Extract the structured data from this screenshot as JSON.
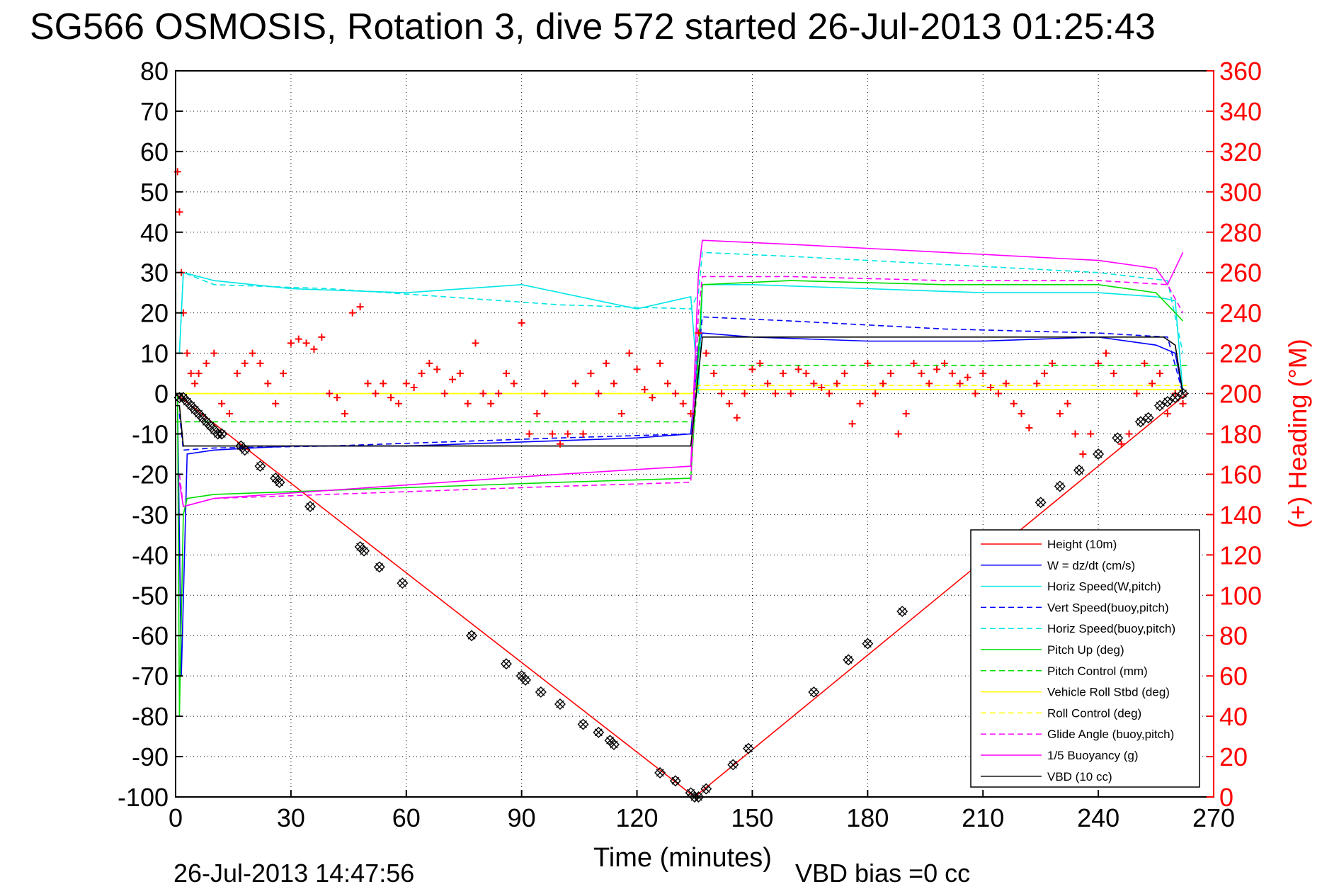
{
  "chart_data": {
    "type": "line",
    "title": "SG566 OSMOSIS, Rotation 3, dive 572 started 26-Jul-2013 01:25:43",
    "xlabel": "Time (minutes)",
    "ylabel_left": "",
    "ylabel_right": "(+) Heading (°M)",
    "xlim": [
      0,
      270
    ],
    "ylim_left": [
      -100,
      80
    ],
    "ylim_right": [
      0,
      360
    ],
    "xticks": [
      0,
      30,
      60,
      90,
      120,
      150,
      180,
      210,
      240,
      270
    ],
    "yticks_left": [
      80,
      70,
      60,
      50,
      40,
      30,
      20,
      10,
      0,
      -10,
      -20,
      -30,
      -40,
      -50,
      -60,
      -70,
      -80,
      -90,
      -100
    ],
    "yticks_right": [
      360,
      340,
      320,
      300,
      280,
      260,
      240,
      220,
      200,
      180,
      160,
      140,
      120,
      100,
      80,
      60,
      40,
      20,
      0
    ],
    "grid": true,
    "legend_position": "bottom-right",
    "footer_date": "26-Jul-2013 14:47:56",
    "footer_bias": "VBD bias =0 cc",
    "series": [
      {
        "name": "Height (10m)",
        "color": "#ff0000",
        "style": "solid",
        "x": [
          0,
          135,
          263
        ],
        "y": [
          0,
          -100,
          0
        ]
      },
      {
        "name": "W = dz/dt (cm/s)",
        "color": "#0000ff",
        "style": "solid",
        "x": [
          0.5,
          1.5,
          3,
          10,
          30,
          60,
          90,
          120,
          134,
          136,
          137,
          150,
          180,
          210,
          240,
          255,
          260,
          262
        ],
        "y": [
          -2,
          -70,
          -15,
          -14,
          -13,
          -13,
          -12,
          -11,
          -10,
          12,
          15,
          14,
          13,
          13,
          14,
          12,
          10,
          0
        ]
      },
      {
        "name": "Horiz Speed(W,pitch)",
        "color": "#00e5e5",
        "style": "solid",
        "x": [
          1,
          2,
          10,
          30,
          60,
          90,
          120,
          134,
          136,
          137,
          150,
          180,
          210,
          240,
          255,
          260,
          262
        ],
        "y": [
          10,
          30,
          28,
          26,
          25,
          27,
          21,
          24,
          0,
          27,
          27,
          26,
          25,
          25,
          24,
          23,
          0
        ]
      },
      {
        "name": "Vert Speed(buoy,pitch)",
        "color": "#0000ff",
        "style": "dashed",
        "x": [
          1,
          2,
          10,
          40,
          70,
          100,
          134,
          136,
          137,
          160,
          200,
          240,
          258,
          262
        ],
        "y": [
          -5,
          -14,
          -13.5,
          -13,
          -12,
          -11,
          -10,
          10,
          19,
          18,
          16,
          15,
          14,
          0
        ]
      },
      {
        "name": "Horiz Speed(buoy,pitch)",
        "color": "#00e5e5",
        "style": "dashed",
        "x": [
          1,
          2,
          10,
          40,
          70,
          100,
          134,
          136,
          137,
          160,
          200,
          240,
          258,
          262
        ],
        "y": [
          10,
          30,
          27,
          26,
          24,
          22,
          21,
          25,
          35,
          34,
          32,
          30,
          28,
          10
        ]
      },
      {
        "name": "Pitch Up (deg)",
        "color": "#00dd00",
        "style": "solid",
        "x": [
          0.5,
          1,
          2,
          3,
          10,
          40,
          70,
          100,
          134,
          136,
          137,
          160,
          200,
          240,
          255,
          262
        ],
        "y": [
          0,
          -80,
          -30,
          -26,
          -25,
          -24,
          -23,
          -22,
          -21,
          10,
          27,
          28,
          27,
          27,
          25,
          18
        ]
      },
      {
        "name": "Pitch Control (mm)",
        "color": "#00dd00",
        "style": "dashed",
        "x": [
          0,
          1,
          135,
          136,
          263
        ],
        "y": [
          -7,
          -7,
          -7,
          7,
          7
        ]
      },
      {
        "name": "Vehicle Roll Stbd (deg)",
        "color": "#ffff00",
        "style": "solid",
        "x": [
          0,
          30,
          60,
          90,
          120,
          134,
          136,
          160,
          200,
          240,
          262
        ],
        "y": [
          0,
          0,
          0,
          0,
          0,
          0,
          1,
          1,
          1,
          1,
          1
        ]
      },
      {
        "name": "Roll Control (deg)",
        "color": "#ffff00",
        "style": "dashed",
        "x": [
          0,
          135,
          136,
          263
        ],
        "y": [
          0,
          0,
          2,
          2
        ]
      },
      {
        "name": "Glide Angle (buoy,pitch)",
        "color": "#ff00ff",
        "style": "dashed",
        "x": [
          1,
          2,
          10,
          40,
          70,
          100,
          134,
          136,
          137,
          160,
          200,
          240,
          258,
          262
        ],
        "y": [
          -20,
          -28,
          -26,
          -25,
          -24,
          -23,
          -22,
          20,
          29,
          29,
          28,
          28,
          27,
          20
        ]
      },
      {
        "name": "1/5 Buoyancy (g)",
        "color": "#ff00ff",
        "style": "solid",
        "x": [
          1,
          2,
          10,
          40,
          70,
          100,
          134,
          136,
          137,
          160,
          200,
          240,
          255,
          258,
          262
        ],
        "y": [
          -22,
          -28,
          -26,
          -24,
          -22,
          -20,
          -18,
          30,
          38,
          37,
          35,
          33,
          31,
          27,
          35
        ]
      },
      {
        "name": "VBD (10 cc)",
        "color": "#000000",
        "style": "solid",
        "x": [
          0,
          1,
          2,
          134,
          136,
          137,
          257,
          260,
          262
        ],
        "y": [
          -3,
          -3,
          -13,
          -13,
          5,
          14,
          14,
          12,
          0
        ]
      }
    ],
    "heading_samples": {
      "axis": "right",
      "color": "#ff0000",
      "x": [
        0.5,
        1,
        1.5,
        2,
        3,
        4,
        5,
        6,
        8,
        10,
        12,
        14,
        16,
        18,
        20,
        22,
        24,
        26,
        28,
        30,
        32,
        34,
        36,
        38,
        40,
        42,
        44,
        46,
        48,
        50,
        52,
        54,
        56,
        58,
        60,
        62,
        64,
        66,
        68,
        70,
        72,
        74,
        76,
        78,
        80,
        82,
        84,
        86,
        88,
        90,
        92,
        94,
        96,
        98,
        100,
        102,
        104,
        106,
        108,
        110,
        112,
        114,
        116,
        118,
        120,
        122,
        124,
        126,
        128,
        130,
        132,
        134,
        136,
        138,
        140,
        142,
        144,
        146,
        148,
        150,
        152,
        154,
        156,
        158,
        160,
        162,
        164,
        166,
        168,
        170,
        172,
        174,
        176,
        178,
        180,
        182,
        184,
        186,
        188,
        190,
        192,
        194,
        196,
        198,
        200,
        202,
        204,
        206,
        208,
        210,
        212,
        214,
        216,
        218,
        220,
        222,
        224,
        226,
        228,
        230,
        232,
        234,
        236,
        238,
        240,
        242,
        244,
        246,
        248,
        250,
        252,
        254,
        256,
        258,
        260,
        262
      ],
      "y": [
        310,
        290,
        260,
        240,
        220,
        210,
        205,
        210,
        215,
        220,
        195,
        190,
        210,
        215,
        220,
        215,
        205,
        195,
        210,
        225,
        227,
        225,
        222,
        228,
        200,
        198,
        190,
        240,
        243,
        205,
        200,
        205,
        198,
        195,
        205,
        203,
        210,
        215,
        212,
        200,
        207,
        210,
        195,
        225,
        200,
        195,
        200,
        210,
        205,
        235,
        180,
        190,
        200,
        180,
        175,
        180,
        205,
        180,
        210,
        200,
        215,
        205,
        190,
        220,
        212,
        202,
        198,
        215,
        205,
        200,
        195,
        190,
        230,
        220,
        210,
        200,
        195,
        188,
        200,
        212,
        215,
        205,
        200,
        210,
        200,
        212,
        210,
        205,
        203,
        200,
        205,
        210,
        185,
        195,
        215,
        200,
        205,
        210,
        180,
        190,
        215,
        210,
        205,
        212,
        215,
        210,
        205,
        208,
        200,
        210,
        203,
        200,
        205,
        195,
        190,
        183,
        205,
        210,
        215,
        190,
        195,
        180,
        170,
        180,
        215,
        220,
        210,
        175,
        180,
        200,
        215,
        205,
        210,
        190,
        200,
        195
      ]
    },
    "depth_markers": {
      "symbol": "diamond-x",
      "color": "#000000",
      "x": [
        1,
        2,
        3,
        4,
        5,
        6,
        7,
        8,
        9,
        10,
        11,
        12,
        17,
        18,
        22,
        26,
        27,
        35,
        48,
        49,
        53,
        59,
        77,
        86,
        90,
        91,
        95,
        100,
        106,
        110,
        113,
        114,
        126,
        130,
        134,
        135,
        136,
        138,
        145,
        149,
        166,
        175,
        180,
        189,
        225,
        230,
        235,
        240,
        245,
        251,
        253,
        256,
        258,
        260,
        262
      ],
      "y": [
        -1,
        -1,
        -2,
        -3,
        -4,
        -5,
        -6,
        -7,
        -8,
        -9,
        -10,
        -10,
        -13,
        -14,
        -18,
        -21,
        -22,
        -28,
        -38,
        -39,
        -43,
        -47,
        -60,
        -67,
        -70,
        -71,
        -74,
        -77,
        -82,
        -84,
        -86,
        -87,
        -94,
        -96,
        -99,
        -100,
        -100,
        -98,
        -92,
        -88,
        -74,
        -66,
        -62,
        -54,
        -27,
        -23,
        -19,
        -15,
        -11,
        -7,
        -6,
        -3,
        -2,
        -1,
        0
      ]
    }
  }
}
